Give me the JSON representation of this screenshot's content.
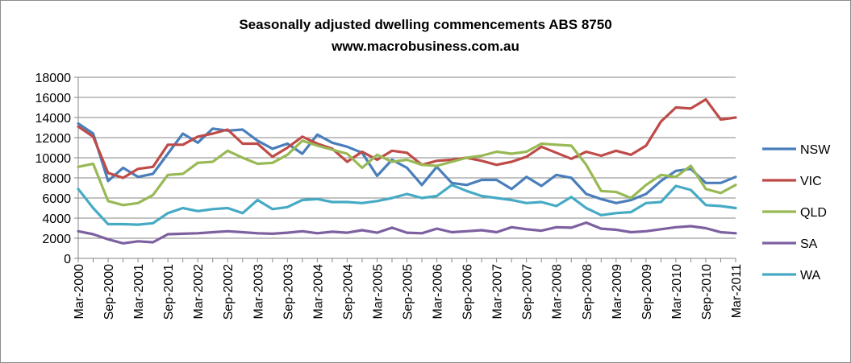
{
  "chart_data": {
    "type": "line",
    "title": "Seasonally adjusted dwelling commencements ABS 8750",
    "subtitle": "www.macrobusiness.com.au",
    "xlabel": "",
    "ylabel": "",
    "ylim": [
      0,
      18000
    ],
    "yticks": [
      0,
      2000,
      4000,
      6000,
      8000,
      10000,
      12000,
      14000,
      16000,
      18000
    ],
    "grid": true,
    "legend_position": "right",
    "x": [
      "Mar-2000",
      "Jun-2000",
      "Sep-2000",
      "Dec-2000",
      "Mar-2001",
      "Jun-2001",
      "Sep-2001",
      "Dec-2001",
      "Mar-2002",
      "Jun-2002",
      "Sep-2002",
      "Dec-2002",
      "Mar-2003",
      "Jun-2003",
      "Sep-2003",
      "Dec-2003",
      "Mar-2004",
      "Jun-2004",
      "Sep-2004",
      "Dec-2004",
      "Mar-2005",
      "Jun-2005",
      "Sep-2005",
      "Dec-2005",
      "Mar-2006",
      "Jun-2006",
      "Sep-2006",
      "Dec-2006",
      "Mar-2007",
      "Jun-2007",
      "Sep-2007",
      "Dec-2007",
      "Mar-2008",
      "Jun-2008",
      "Sep-2008",
      "Dec-2008",
      "Mar-2009",
      "Jun-2009",
      "Sep-2009",
      "Dec-2009",
      "Mar-2010",
      "Jun-2010",
      "Sep-2010",
      "Dec-2010",
      "Mar-2011"
    ],
    "xtick_labels": [
      "Mar-2000",
      "Sep-2000",
      "Mar-2001",
      "Sep-2001",
      "Mar-2002",
      "Sep-2002",
      "Mar-2003",
      "Sep-2003",
      "Mar-2004",
      "Sep-2004",
      "Mar-2005",
      "Sep-2005",
      "Mar-2006",
      "Sep-2006",
      "Mar-2007",
      "Sep-2007",
      "Mar-2008",
      "Sep-2008",
      "Mar-2009",
      "Sep-2009",
      "Mar-2010",
      "Sep-2010",
      "Mar-2011"
    ],
    "series": [
      {
        "name": "NSW",
        "color": "#4a7ebb",
        "values": [
          13400,
          12400,
          7700,
          9000,
          8100,
          8400,
          10400,
          12400,
          11500,
          12900,
          12700,
          12800,
          11700,
          10900,
          11400,
          10400,
          12300,
          11500,
          11100,
          10500,
          8200,
          9800,
          9000,
          7300,
          9100,
          7500,
          7300,
          7800,
          7800,
          6900,
          8100,
          7200,
          8300,
          8000,
          6400,
          5900,
          5500,
          5800,
          6400,
          7700,
          8700,
          8900,
          7500,
          7500,
          8100
        ]
      },
      {
        "name": "VIC",
        "color": "#be4b48",
        "values": [
          13100,
          12100,
          8500,
          8000,
          8900,
          9100,
          11300,
          11300,
          12100,
          12400,
          12800,
          11400,
          11400,
          10100,
          11000,
          12100,
          11400,
          10900,
          9600,
          10600,
          9800,
          10700,
          10500,
          9300,
          9700,
          9800,
          10000,
          9700,
          9300,
          9600,
          10100,
          11100,
          10500,
          9900,
          10600,
          10200,
          10700,
          10300,
          11200,
          13600,
          15000,
          14900,
          15800,
          13800,
          14000
        ]
      },
      {
        "name": "QLD",
        "color": "#98b954",
        "values": [
          9100,
          9400,
          5700,
          5300,
          5500,
          6300,
          8300,
          8400,
          9500,
          9600,
          10700,
          10000,
          9400,
          9500,
          10300,
          11700,
          11200,
          10800,
          10400,
          9000,
          10300,
          9600,
          9800,
          9300,
          9200,
          9600,
          10000,
          10200,
          10600,
          10400,
          10600,
          11400,
          11300,
          11200,
          9300,
          6700,
          6600,
          6000,
          7300,
          8300,
          8100,
          9200,
          6900,
          6500,
          7300
        ]
      },
      {
        "name": "SA",
        "color": "#7d60a0",
        "values": [
          2700,
          2400,
          1900,
          1500,
          1700,
          1600,
          2400,
          2450,
          2500,
          2600,
          2700,
          2600,
          2500,
          2450,
          2550,
          2700,
          2500,
          2650,
          2550,
          2800,
          2550,
          3050,
          2550,
          2500,
          2950,
          2600,
          2700,
          2800,
          2600,
          3100,
          2900,
          2750,
          3100,
          3050,
          3550,
          2950,
          2850,
          2600,
          2700,
          2900,
          3100,
          3200,
          3000,
          2600,
          2500
        ]
      },
      {
        "name": "WA",
        "color": "#46aac5",
        "values": [
          6900,
          5000,
          3400,
          3400,
          3350,
          3500,
          4500,
          5000,
          4700,
          4900,
          5000,
          4500,
          5800,
          4900,
          5100,
          5800,
          5900,
          5600,
          5600,
          5500,
          5700,
          6000,
          6400,
          6000,
          6200,
          7300,
          6700,
          6200,
          6000,
          5800,
          5500,
          5600,
          5200,
          6100,
          5000,
          4300,
          4500,
          4600,
          5500,
          5600,
          7200,
          6800,
          5300,
          5200,
          5000
        ]
      }
    ]
  }
}
